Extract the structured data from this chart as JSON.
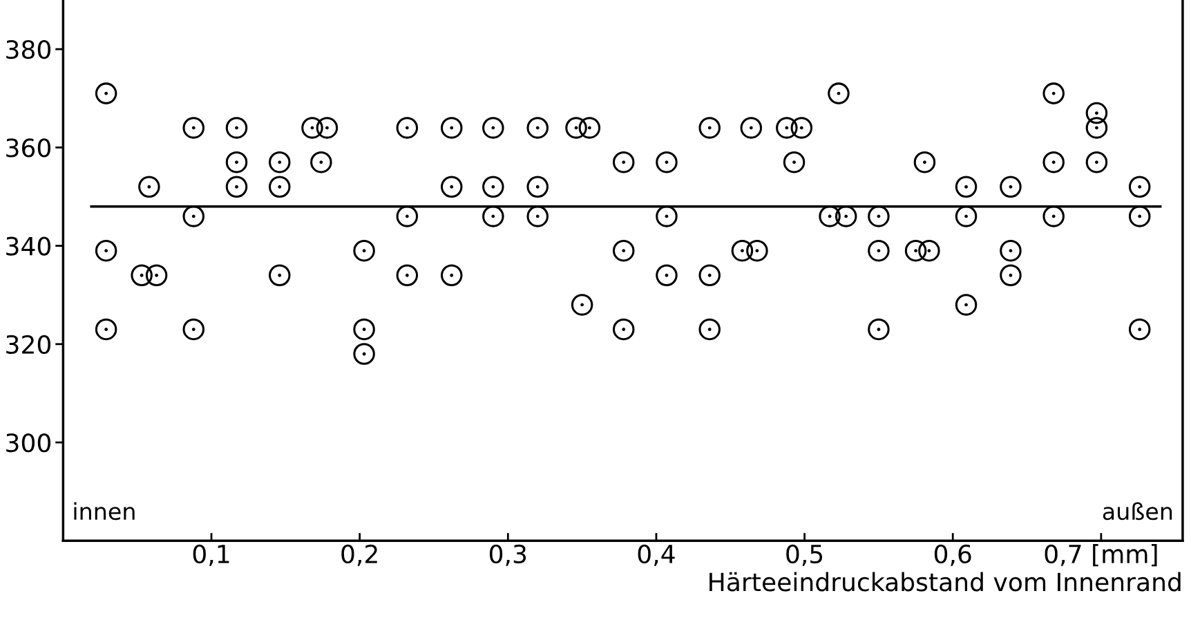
{
  "chart_data": {
    "type": "scatter",
    "xlabel": "Härteeindruckabstand vom Innenrand",
    "annotations": [
      "innen",
      "außen"
    ],
    "grid": false,
    "xlim": [
      0,
      0.755
    ],
    "ylim": [
      280,
      390
    ],
    "xticks": [
      {
        "value": 0.1,
        "label": "0,1"
      },
      {
        "value": 0.2,
        "label": "0,2"
      },
      {
        "value": 0.3,
        "label": "0,3"
      },
      {
        "value": 0.4,
        "label": "0,4"
      },
      {
        "value": 0.5,
        "label": "0,5"
      },
      {
        "value": 0.6,
        "label": "0,6"
      },
      {
        "value": 0.7,
        "label": "0,7 [mm]"
      }
    ],
    "yticks": [
      300,
      320,
      340,
      360,
      380
    ],
    "series": [
      {
        "color": "#000000",
        "marker": "circle",
        "x": [
          0.029,
          0.029,
          0.029,
          0.053,
          0.063,
          0.058,
          0.088,
          0.088,
          0.088,
          0.117,
          0.117,
          0.117,
          0.146,
          0.146,
          0.146,
          0.168,
          0.178,
          0.174,
          0.203,
          0.203,
          0.203,
          0.232,
          0.232,
          0.232,
          0.262,
          0.262,
          0.262,
          0.29,
          0.29,
          0.29,
          0.32,
          0.32,
          0.32,
          0.346,
          0.355,
          0.35,
          0.378,
          0.378,
          0.378,
          0.407,
          0.407,
          0.407,
          0.436,
          0.436,
          0.436,
          0.458,
          0.468,
          0.464,
          0.488,
          0.498,
          0.493,
          0.517,
          0.528,
          0.523,
          0.55,
          0.55,
          0.55,
          0.575,
          0.584,
          0.581,
          0.609,
          0.609,
          0.609,
          0.639,
          0.639,
          0.639,
          0.668,
          0.668,
          0.668,
          0.697,
          0.697,
          0.697,
          0.726,
          0.726,
          0.726
        ],
        "values": [
          371,
          339,
          323,
          334,
          334,
          352,
          364,
          346,
          323,
          364,
          357,
          352,
          357,
          352,
          334,
          364,
          364,
          357,
          339,
          323,
          318,
          364,
          346,
          334,
          364,
          352,
          334,
          364,
          352,
          346,
          364,
          352,
          346,
          364,
          364,
          328,
          357,
          339,
          323,
          357,
          346,
          334,
          364,
          334,
          323,
          339,
          339,
          364,
          364,
          364,
          357,
          346,
          346,
          371,
          346,
          339,
          323,
          339,
          339,
          357,
          352,
          346,
          328,
          352,
          339,
          334,
          371,
          357,
          346,
          367,
          364,
          357,
          352,
          346,
          323
        ]
      },
      {
        "type": "line",
        "marker": "none",
        "color": "#000000",
        "x": [
          0.019,
          0.74
        ],
        "values": [
          348,
          348
        ]
      }
    ]
  }
}
